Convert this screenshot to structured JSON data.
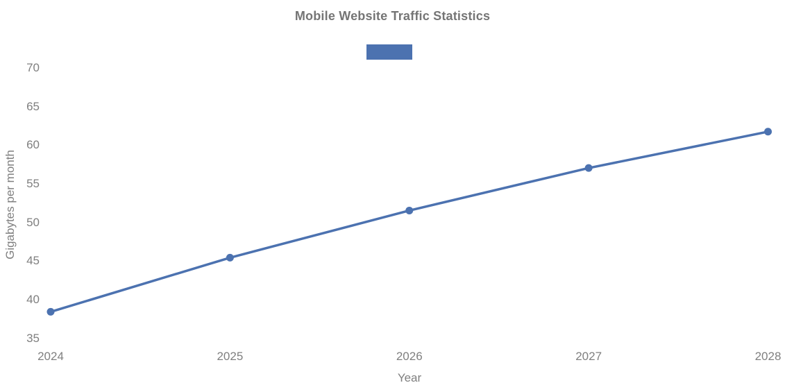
{
  "chart_data": {
    "type": "line",
    "title": "Mobile Website Traffic Statistics",
    "xlabel": "Year",
    "ylabel": "Gigabytes per month",
    "categories": [
      "2024",
      "2025",
      "2026",
      "2027",
      "2028"
    ],
    "series": [
      {
        "name": "",
        "values": [
          38.4,
          45.4,
          51.5,
          57.0,
          61.7
        ],
        "color": "#4C72B0",
        "marker": "circle"
      }
    ],
    "ylim": [
      35,
      70
    ],
    "yticks": [
      35,
      40,
      45,
      50,
      55,
      60,
      65,
      70
    ],
    "grid": false,
    "axis_spines": false,
    "legend": {
      "position": "top-center",
      "swatch_color": "#4C72B0",
      "label": ""
    },
    "colors": {
      "title_text": "#757575",
      "tick_text": "#7f7f7f",
      "axis_label_text": "#7f7f7f"
    }
  }
}
